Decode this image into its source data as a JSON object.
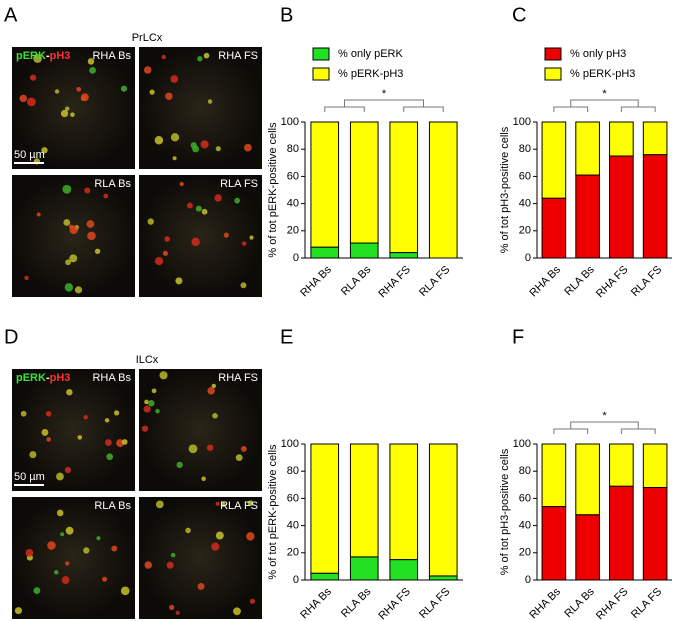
{
  "figure": {
    "panels": [
      {
        "letter": "A",
        "region": "PrLCx",
        "stain": [
          "pERK",
          "-",
          "pH3"
        ],
        "images": [
          "RHA Bs",
          "RHA FS",
          "RLA Bs",
          "RLA FS"
        ],
        "scale": "50 µm"
      },
      {
        "letter": "D",
        "region": "ILCx",
        "stain": [
          "pERK",
          "-",
          "pH3"
        ],
        "images": [
          "RHA Bs",
          "RHA FS",
          "RLA Bs",
          "RLA FS"
        ],
        "scale": "50 µm"
      }
    ]
  },
  "chart_data": [
    {
      "type": "stacked_bar",
      "label": "B",
      "ylabel": "% of tot pERK-positive cells",
      "categories": [
        "RHA Bs",
        "RLA Bs",
        "RHA FS",
        "RLA FS"
      ],
      "series": [
        {
          "name": "% only pERK",
          "color": "#22e022",
          "values": [
            8,
            11,
            4,
            0
          ]
        },
        {
          "name": "% pERK-pH3",
          "color": "#ffff00",
          "values": [
            92,
            89,
            96,
            100
          ]
        }
      ],
      "ylim": [
        0,
        100
      ],
      "yticks": [
        0,
        20,
        40,
        60,
        80,
        100
      ],
      "legend": "top",
      "annotation": "*"
    },
    {
      "type": "stacked_bar",
      "label": "C",
      "ylabel": "% of tot pH3-positive cells",
      "categories": [
        "RHA Bs",
        "RLA Bs",
        "RHA FS",
        "RLA FS"
      ],
      "series": [
        {
          "name": "% only pH3",
          "color": "#ee0000",
          "values": [
            44,
            61,
            75,
            76
          ]
        },
        {
          "name": "% pERK-pH3",
          "color": "#ffff00",
          "values": [
            56,
            39,
            25,
            24
          ]
        }
      ],
      "ylim": [
        0,
        100
      ],
      "yticks": [
        0,
        20,
        40,
        60,
        80,
        100
      ],
      "legend": "top",
      "annotation": "*"
    },
    {
      "type": "stacked_bar",
      "label": "E",
      "ylabel": "% of tot pERK-positive cells",
      "categories": [
        "RHA Bs",
        "RLA Bs",
        "RHA FS",
        "RLA FS"
      ],
      "series": [
        {
          "color": "#22e022",
          "values": [
            5,
            17,
            15,
            3
          ]
        },
        {
          "color": "#ffff00",
          "values": [
            95,
            83,
            85,
            97
          ]
        }
      ],
      "ylim": [
        0,
        100
      ],
      "yticks": [
        0,
        20,
        40,
        60,
        80,
        100
      ]
    },
    {
      "type": "stacked_bar",
      "label": "F",
      "ylabel": "% of tot pH3-positive cells",
      "categories": [
        "RHA Bs",
        "RLA Bs",
        "RHA FS",
        "RLA FS"
      ],
      "series": [
        {
          "color": "#ee0000",
          "values": [
            54,
            48,
            69,
            68
          ]
        },
        {
          "color": "#ffff00",
          "values": [
            46,
            52,
            31,
            32
          ]
        }
      ],
      "ylim": [
        0,
        100
      ],
      "yticks": [
        0,
        20,
        40,
        60,
        80,
        100
      ],
      "annotation": "*"
    }
  ]
}
